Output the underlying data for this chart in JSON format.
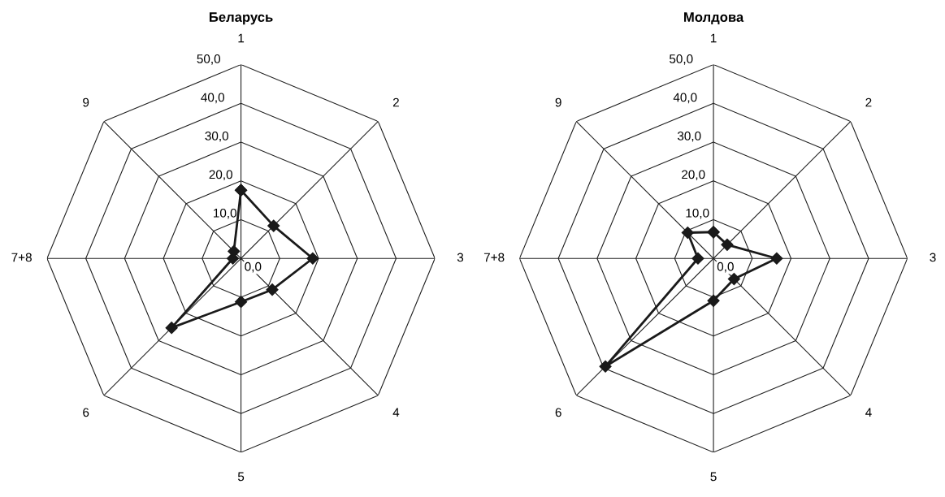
{
  "chart_data": [
    {
      "type": "radar",
      "title": "Беларусь",
      "categories": [
        "1",
        "2",
        "3",
        "4",
        "5",
        "6",
        "7+8",
        "9"
      ],
      "ylim": [
        0,
        50
      ],
      "yticks": [
        {
          "value": 0,
          "label": "0,0"
        },
        {
          "value": 10,
          "label": "10,0"
        },
        {
          "value": 20,
          "label": "20,0"
        },
        {
          "value": 30,
          "label": "30,0"
        },
        {
          "value": 40,
          "label": "40,0"
        },
        {
          "value": 50,
          "label": "50,0"
        }
      ],
      "grid": true,
      "marker": "diamond",
      "line_style": "solid",
      "series": [
        {
          "color": "#1a1a1a",
          "values": [
            17.6,
            11.9,
            18.5,
            11.4,
            11.2,
            25.3,
            2.1,
            2.6
          ]
        }
      ]
    },
    {
      "type": "radar",
      "title": "Молдова",
      "categories": [
        "1",
        "2",
        "3",
        "4",
        "5",
        "6",
        "7+8",
        "9"
      ],
      "ylim": [
        0,
        50
      ],
      "yticks": [
        {
          "value": 0,
          "label": "0,0"
        },
        {
          "value": 10,
          "label": "10,0"
        },
        {
          "value": 20,
          "label": "20,0"
        },
        {
          "value": 30,
          "label": "30,0"
        },
        {
          "value": 40,
          "label": "40,0"
        },
        {
          "value": 50,
          "label": "50,0"
        }
      ],
      "grid": true,
      "marker": "diamond",
      "line_style": "solid",
      "series": [
        {
          "color": "#1a1a1a",
          "values": [
            6.8,
            5.0,
            16.3,
            7.5,
            10.9,
            39.4,
            4.0,
            9.4
          ]
        }
      ]
    }
  ]
}
